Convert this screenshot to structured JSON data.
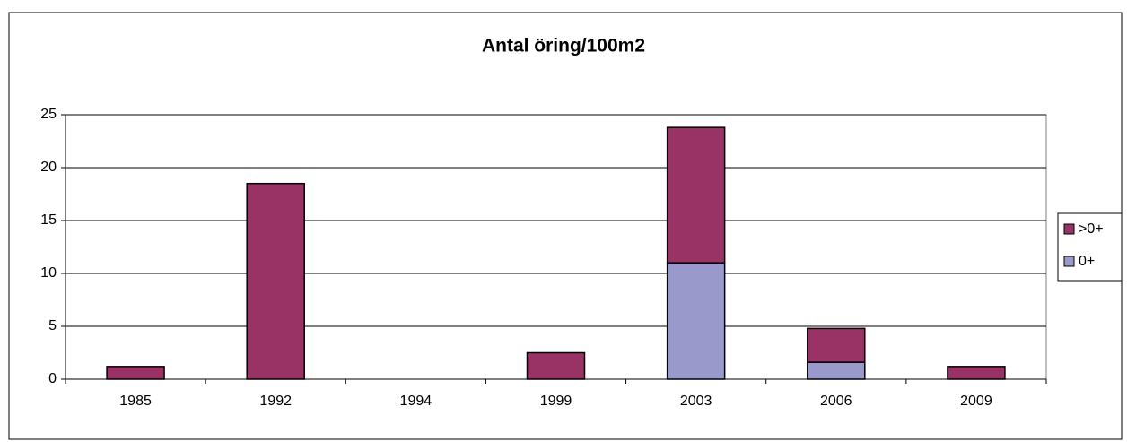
{
  "chart_data": {
    "type": "stacked_bar",
    "title": "Antal öring/100m2",
    "categories": [
      "1985",
      "1992",
      "1994",
      "1999",
      "2003",
      "2006",
      "2009"
    ],
    "series": [
      {
        "name": ">0+",
        "color": "#993366",
        "values": [
          1.2,
          18.5,
          0,
          2.5,
          12.8,
          3.2,
          1.2
        ]
      },
      {
        "name": "0+",
        "color": "#9999cc",
        "values": [
          0,
          0,
          0,
          0,
          11,
          1.6,
          0
        ]
      }
    ],
    "ylim": [
      0,
      25
    ],
    "yticks": [
      0,
      5,
      10,
      15,
      20,
      25
    ],
    "grid": true,
    "legend": "right"
  }
}
